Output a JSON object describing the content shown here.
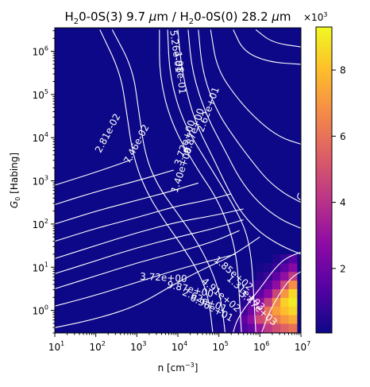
{
  "chart_data": {
    "type": "heatmap",
    "title": "H$_2$0-0S(3) 9.7 μm / H$_2$0-0S(0) 28.2 μm",
    "title_parts": {
      "p1": "H",
      "p1_sub": "2",
      "p2": "0-0S(3) 9.7 ",
      "p2_mu": "μ",
      "p2_unit": "m / H",
      "p3_sub": "2",
      "p4": "0-0S(0) 28.2 ",
      "p4_mu": "μ",
      "p4_unit": "m"
    },
    "xlabel": "n [cm$^{-3}$]",
    "xlabel_parts": {
      "main": "n [cm",
      "sup": "−3",
      "end": "]"
    },
    "ylabel": "G$_0$ [Habing]",
    "ylabel_parts": {
      "main": "G",
      "sub": "0",
      "end": " [Habing]"
    },
    "x_scale": "log",
    "y_scale": "log",
    "xlim": [
      10,
      10000000
    ],
    "ylim": [
      0.3,
      3500000
    ],
    "x_ticks": [
      {
        "value": 10,
        "base": "10",
        "exp": "1"
      },
      {
        "value": 100,
        "base": "10",
        "exp": "2"
      },
      {
        "value": 1000,
        "base": "10",
        "exp": "3"
      },
      {
        "value": 10000,
        "base": "10",
        "exp": "4"
      },
      {
        "value": 100000,
        "base": "10",
        "exp": "5"
      },
      {
        "value": 1000000,
        "base": "10",
        "exp": "6"
      },
      {
        "value": 10000000,
        "base": "10",
        "exp": "7"
      }
    ],
    "y_ticks": [
      {
        "value": 1,
        "base": "10",
        "exp": "0"
      },
      {
        "value": 10,
        "base": "10",
        "exp": "1"
      },
      {
        "value": 100,
        "base": "10",
        "exp": "2"
      },
      {
        "value": 1000,
        "base": "10",
        "exp": "3"
      },
      {
        "value": 10000,
        "base": "10",
        "exp": "4"
      },
      {
        "value": 100000,
        "base": "10",
        "exp": "5"
      },
      {
        "value": 1000000,
        "base": "10",
        "exp": "6"
      }
    ],
    "colormap": "plasma",
    "colormap_stops": [
      "#0d0887",
      "#5402a3",
      "#8b0aa5",
      "#b93289",
      "#db5c68",
      "#f48849",
      "#febd2a",
      "#f0f921"
    ],
    "background_color": "#0d0887",
    "colorbar": {
      "range": [
        0.05,
        9.3
      ],
      "ticks": [
        2,
        4,
        6,
        8
      ],
      "tick_labels": [
        "2",
        "4",
        "6",
        "8"
      ],
      "multiplier_base": "×10",
      "multiplier_exp": "3"
    },
    "hotspot": {
      "x_log": 6.8,
      "y_log": 0.3,
      "peak": 9.2
    },
    "heat_cells": [
      {
        "x_log": 5.0,
        "y_log": -0.4,
        "value": 0.15
      },
      {
        "x_log": 5.2,
        "y_log": -0.4,
        "value": 0.3
      },
      {
        "x_log": 5.2,
        "y_log": -0.2,
        "value": 0.15
      },
      {
        "x_log": 5.4,
        "y_log": -0.4,
        "value": 0.5
      },
      {
        "x_log": 5.4,
        "y_log": -0.2,
        "value": 0.35
      },
      {
        "x_log": 5.4,
        "y_log": 0.0,
        "value": 0.2
      },
      {
        "x_log": 5.6,
        "y_log": -0.4,
        "value": 1.2
      },
      {
        "x_log": 5.6,
        "y_log": -0.2,
        "value": 1.6
      },
      {
        "x_log": 5.6,
        "y_log": 0.0,
        "value": 1.0
      },
      {
        "x_log": 5.6,
        "y_log": 0.2,
        "value": 0.5
      },
      {
        "x_log": 5.6,
        "y_log": 0.4,
        "value": 0.3
      },
      {
        "x_log": 5.8,
        "y_log": -0.4,
        "value": 1.8
      },
      {
        "x_log": 5.8,
        "y_log": -0.2,
        "value": 2.8
      },
      {
        "x_log": 5.8,
        "y_log": 0.0,
        "value": 2.0
      },
      {
        "x_log": 5.8,
        "y_log": 0.2,
        "value": 1.5
      },
      {
        "x_log": 5.8,
        "y_log": 0.4,
        "value": 0.9
      },
      {
        "x_log": 5.8,
        "y_log": 0.6,
        "value": 0.5
      },
      {
        "x_log": 6.0,
        "y_log": -0.4,
        "value": 3.0
      },
      {
        "x_log": 6.0,
        "y_log": -0.2,
        "value": 4.8
      },
      {
        "x_log": 6.0,
        "y_log": 0.0,
        "value": 3.8
      },
      {
        "x_log": 6.0,
        "y_log": 0.2,
        "value": 2.6
      },
      {
        "x_log": 6.0,
        "y_log": 0.4,
        "value": 1.6
      },
      {
        "x_log": 6.0,
        "y_log": 0.6,
        "value": 0.9
      },
      {
        "x_log": 6.0,
        "y_log": 0.8,
        "value": 0.5
      },
      {
        "x_log": 6.0,
        "y_log": 1.0,
        "value": 0.2
      },
      {
        "x_log": 6.2,
        "y_log": -0.4,
        "value": 4.2
      },
      {
        "x_log": 6.2,
        "y_log": -0.2,
        "value": 5.4
      },
      {
        "x_log": 6.2,
        "y_log": 0.0,
        "value": 6.0
      },
      {
        "x_log": 6.2,
        "y_log": 0.2,
        "value": 4.4
      },
      {
        "x_log": 6.2,
        "y_log": 0.4,
        "value": 2.7
      },
      {
        "x_log": 6.2,
        "y_log": 0.6,
        "value": 1.6
      },
      {
        "x_log": 6.2,
        "y_log": 0.8,
        "value": 0.9
      },
      {
        "x_log": 6.2,
        "y_log": 1.0,
        "value": 0.4
      },
      {
        "x_log": 6.4,
        "y_log": -0.4,
        "value": 4.9
      },
      {
        "x_log": 6.4,
        "y_log": -0.2,
        "value": 6.3
      },
      {
        "x_log": 6.4,
        "y_log": 0.0,
        "value": 7.2
      },
      {
        "x_log": 6.4,
        "y_log": 0.2,
        "value": 6.6
      },
      {
        "x_log": 6.4,
        "y_log": 0.4,
        "value": 4.6
      },
      {
        "x_log": 6.4,
        "y_log": 0.6,
        "value": 2.8
      },
      {
        "x_log": 6.4,
        "y_log": 0.8,
        "value": 1.7
      },
      {
        "x_log": 6.4,
        "y_log": 1.0,
        "value": 0.9
      },
      {
        "x_log": 6.4,
        "y_log": 1.2,
        "value": 0.4
      },
      {
        "x_log": 6.6,
        "y_log": -0.4,
        "value": 5.5
      },
      {
        "x_log": 6.6,
        "y_log": -0.2,
        "value": 7.0
      },
      {
        "x_log": 6.6,
        "y_log": 0.0,
        "value": 8.0
      },
      {
        "x_log": 6.6,
        "y_log": 0.2,
        "value": 8.4
      },
      {
        "x_log": 6.6,
        "y_log": 0.4,
        "value": 7.0
      },
      {
        "x_log": 6.6,
        "y_log": 0.6,
        "value": 4.8
      },
      {
        "x_log": 6.6,
        "y_log": 0.8,
        "value": 2.9
      },
      {
        "x_log": 6.6,
        "y_log": 1.0,
        "value": 1.6
      },
      {
        "x_log": 6.6,
        "y_log": 1.2,
        "value": 0.8
      },
      {
        "x_log": 6.8,
        "y_log": -0.4,
        "value": 6.0
      },
      {
        "x_log": 6.8,
        "y_log": -0.2,
        "value": 7.5
      },
      {
        "x_log": 6.8,
        "y_log": 0.0,
        "value": 8.5
      },
      {
        "x_log": 6.8,
        "y_log": 0.2,
        "value": 9.0
      },
      {
        "x_log": 6.8,
        "y_log": 0.4,
        "value": 8.6
      },
      {
        "x_log": 6.8,
        "y_log": 0.6,
        "value": 6.8
      },
      {
        "x_log": 6.8,
        "y_log": 0.8,
        "value": 4.3
      },
      {
        "x_log": 6.8,
        "y_log": 1.0,
        "value": 2.6
      },
      {
        "x_log": 6.8,
        "y_log": 1.2,
        "value": 1.4
      }
    ],
    "contours": [
      {
        "label": "2.81e-02",
        "points": [
          [
            2.1,
            6.5
          ],
          [
            2.6,
            5.5
          ],
          [
            2.75,
            4.6
          ],
          [
            2.9,
            3.6
          ],
          [
            3.2,
            2.8
          ],
          [
            3.65,
            2.1
          ],
          [
            4.1,
            1.5
          ],
          [
            4.5,
            0.9
          ],
          [
            4.75,
            0.3
          ],
          [
            4.85,
            -0.5
          ]
        ],
        "label_at": [
          2.3,
          4.1
        ],
        "label_angle": -62
      },
      {
        "label": "7.46e-02",
        "points": [
          [
            2.4,
            6.5
          ],
          [
            2.9,
            5.6
          ],
          [
            3.05,
            4.6
          ],
          [
            3.2,
            3.6
          ],
          [
            3.5,
            2.9
          ],
          [
            3.95,
            2.3
          ],
          [
            4.4,
            1.7
          ],
          [
            4.8,
            1.0
          ],
          [
            5.05,
            0.3
          ],
          [
            5.15,
            -0.5
          ]
        ],
        "label_at": [
          3.0,
          3.85
        ],
        "label_angle": -62
      },
      {
        "label": "5.26e-01",
        "points": [
          [
            3.75,
            6.5
          ],
          [
            3.8,
            5.4
          ],
          [
            4.15,
            4.3
          ],
          [
            4.8,
            3.3
          ],
          [
            5.25,
            2.6
          ],
          [
            5.65,
            1.9
          ],
          [
            5.8,
            1.2
          ],
          [
            5.85,
            0.3
          ],
          [
            5.9,
            -0.5
          ]
        ],
        "label_at": [
          3.95,
          6.0
        ],
        "label_angle": 82
      },
      {
        "label": "1.98e-01",
        "points": [
          [
            3.55,
            6.5
          ],
          [
            3.55,
            5.4
          ],
          [
            3.85,
            4.3
          ],
          [
            4.45,
            3.3
          ],
          [
            4.95,
            2.6
          ],
          [
            5.3,
            1.8
          ],
          [
            5.45,
            1.1
          ],
          [
            5.5,
            0.3
          ],
          [
            5.55,
            -0.5
          ]
        ],
        "label_at": [
          4.05,
          5.5
        ],
        "label_angle": 84
      },
      {
        "label": "9.87e+00",
        "points": [
          [
            4.5,
            6.5
          ],
          [
            4.6,
            5.5
          ],
          [
            4.95,
            4.6
          ],
          [
            5.45,
            3.9
          ],
          [
            5.85,
            3.4
          ],
          [
            6.2,
            3.0
          ],
          [
            6.6,
            2.7
          ],
          [
            7.0,
            2.5
          ]
        ],
        "label_at": [
          4.4,
          4.15
        ],
        "label_angle": -72
      },
      {
        "label": "3.72e+00",
        "points": [
          [
            4.25,
            6.5
          ],
          [
            4.35,
            5.5
          ],
          [
            4.7,
            4.5
          ],
          [
            5.15,
            3.7
          ],
          [
            5.5,
            3.05
          ],
          [
            5.95,
            2.5
          ],
          [
            6.5,
            2.1
          ],
          [
            7.0,
            1.9
          ]
        ],
        "label_at": [
          4.18,
          3.88
        ],
        "label_angle": -72
      },
      {
        "label": "1.40e+00",
        "points": [
          [
            4.0,
            6.5
          ],
          [
            4.1,
            5.5
          ],
          [
            4.4,
            4.4
          ],
          [
            4.85,
            3.55
          ],
          [
            5.2,
            2.85
          ],
          [
            5.55,
            2.25
          ],
          [
            6.0,
            1.8
          ],
          [
            6.5,
            1.5
          ],
          [
            7.0,
            1.3
          ]
        ],
        "label_at": [
          4.1,
          3.25
        ],
        "label_angle": -72
      },
      {
        "label": "2.62e+01",
        "points": [
          [
            4.8,
            6.5
          ],
          [
            4.95,
            5.6
          ],
          [
            5.45,
            4.9
          ],
          [
            6.0,
            4.35
          ],
          [
            6.5,
            4.0
          ],
          [
            7.0,
            3.85
          ]
        ],
        "label_at": [
          4.75,
          4.65
        ],
        "label_angle": -70
      },
      {
        "label": "",
        "points": [
          [
            5.35,
            6.5
          ],
          [
            5.6,
            6.0
          ],
          [
            6.2,
            5.75
          ],
          [
            7.0,
            5.7
          ]
        ],
        "label_at": null,
        "label_angle": 0
      },
      {
        "label": "",
        "points": [
          [
            5.9,
            6.5
          ],
          [
            6.3,
            6.2
          ],
          [
            7.0,
            6.1
          ]
        ],
        "label_at": null,
        "label_angle": 0
      },
      {
        "label": "3.72e+00",
        "points": [
          [
            1.0,
            -0.4
          ],
          [
            2.0,
            -0.2
          ],
          [
            3.0,
            0.1
          ],
          [
            3.9,
            0.6
          ],
          [
            4.6,
            0.95
          ],
          [
            5.3,
            1.25
          ],
          [
            6.0,
            1.7
          ]
        ],
        "label_at": [
          3.65,
          0.75
        ],
        "label_angle": 3
      },
      {
        "label": "9.87e+00",
        "points": [
          [
            1.0,
            0.1
          ],
          [
            2.0,
            0.35
          ],
          [
            3.0,
            0.65
          ],
          [
            4.0,
            0.95
          ],
          [
            4.8,
            1.15
          ],
          [
            5.4,
            1.3
          ]
        ],
        "label_at": [
          4.3,
          0.48
        ],
        "label_angle": 12
      },
      {
        "label": "2.62e+01",
        "points": [
          [
            1.0,
            0.5
          ],
          [
            2.0,
            0.8
          ],
          [
            3.0,
            1.1
          ],
          [
            4.0,
            1.35
          ],
          [
            4.9,
            1.6
          ],
          [
            5.5,
            1.85
          ]
        ],
        "label_at": [
          4.65,
          0.22
        ],
        "label_angle": 22
      },
      {
        "label": "6.96e+01",
        "points": [
          [
            1.0,
            0.85
          ],
          [
            2.0,
            1.15
          ],
          [
            3.0,
            1.45
          ],
          [
            4.0,
            1.7
          ],
          [
            4.9,
            1.9
          ],
          [
            5.6,
            2.1
          ]
        ],
        "label_at": [
          4.82,
          0.05
        ],
        "label_angle": 28
      },
      {
        "label": "1.85e+02",
        "points": [
          [
            1.0,
            1.2
          ],
          [
            2.0,
            1.5
          ],
          [
            3.0,
            1.8
          ],
          [
            4.0,
            2.05
          ],
          [
            4.9,
            2.2
          ],
          [
            5.6,
            2.35
          ]
        ],
        "label_at": [
          5.35,
          0.85
        ],
        "label_angle": 40
      },
      {
        "label": "4.91e+02",
        "points": [
          [
            1.0,
            1.6
          ],
          [
            2.0,
            1.9
          ],
          [
            3.0,
            2.15
          ],
          [
            3.9,
            2.4
          ],
          [
            4.7,
            2.55
          ],
          [
            5.3,
            2.7
          ]
        ],
        "label_at": [
          5.05,
          0.35
        ],
        "label_angle": 40
      },
      {
        "label": "1.31e+03",
        "points": [
          [
            1.0,
            2.0
          ],
          [
            2.0,
            2.3
          ],
          [
            3.0,
            2.55
          ],
          [
            3.8,
            2.75
          ],
          [
            4.5,
            2.95
          ]
        ],
        "label_at": [
          5.65,
          0.4
        ],
        "label_angle": 42
      },
      {
        "label": "3.47e+03",
        "points": [
          [
            5.35,
            -0.5
          ],
          [
            5.45,
            -0.2
          ],
          [
            5.7,
            0.15
          ],
          [
            6.0,
            0.5
          ],
          [
            6.3,
            0.9
          ],
          [
            6.6,
            1.2
          ],
          [
            7.0,
            1.35
          ]
        ],
        "label_at": [
          5.95,
          0.05
        ],
        "label_angle": 42
      },
      {
        "label": "",
        "points": [
          [
            1.0,
            2.45
          ],
          [
            2.0,
            2.75
          ],
          [
            3.0,
            3.0
          ],
          [
            3.9,
            3.25
          ]
        ],
        "label_at": null,
        "label_angle": 0
      },
      {
        "label": "",
        "points": [
          [
            1.0,
            2.9
          ],
          [
            2.0,
            3.2
          ],
          [
            2.9,
            3.5
          ]
        ],
        "label_at": null,
        "label_angle": 0
      },
      {
        "label": "",
        "points": [
          [
            6.05,
            -0.5
          ],
          [
            6.2,
            -0.1
          ],
          [
            6.45,
            0.35
          ],
          [
            6.75,
            0.75
          ],
          [
            7.0,
            0.9
          ]
        ],
        "label_at": null,
        "label_angle": 0
      },
      {
        "label": "",
        "points": [
          [
            6.95,
            2.72
          ],
          [
            6.9,
            2.62
          ],
          [
            7.0,
            2.55
          ]
        ],
        "label_at": null,
        "label_angle": 0
      }
    ]
  }
}
